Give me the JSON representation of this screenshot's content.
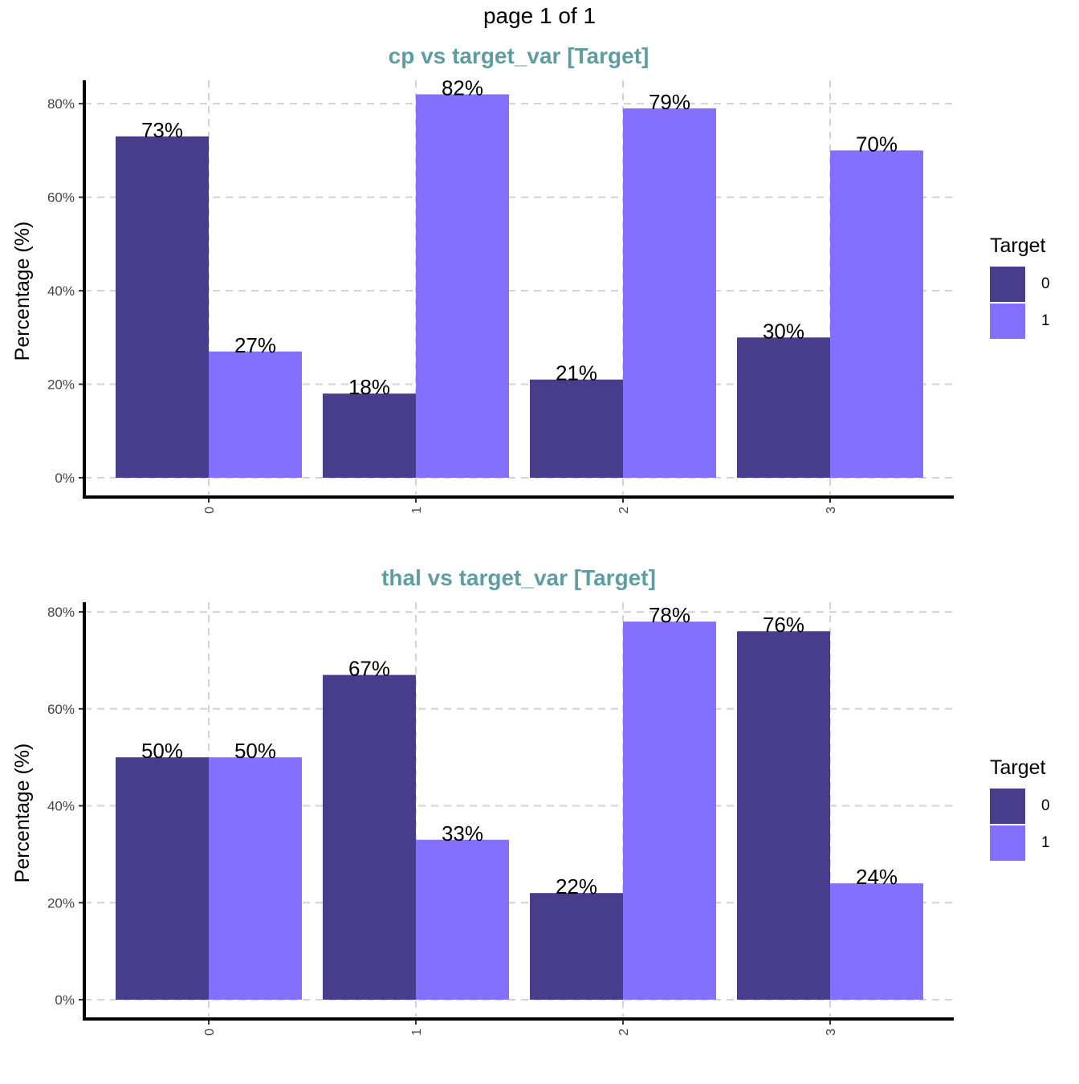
{
  "page_title": "page 1 of 1",
  "colors": {
    "target_0": "#483D8B",
    "target_1": "#8470FF",
    "title": "#5F9EA0",
    "grid": "#D3D3D3"
  },
  "chart_data": [
    {
      "type": "bar",
      "title": "cp vs target_var [Target]",
      "xlabel": "",
      "ylabel": "Percentage (%)",
      "categories": [
        "0",
        "1",
        "2",
        "3"
      ],
      "series": [
        {
          "name": "0",
          "values": [
            73,
            18,
            21,
            30
          ]
        },
        {
          "name": "1",
          "values": [
            27,
            82,
            79,
            70
          ]
        }
      ],
      "ylim": [
        0,
        85
      ],
      "yticks": [
        "0%",
        "20%",
        "40%",
        "60%",
        "80%"
      ],
      "legend": {
        "title": "Target",
        "position": "right"
      },
      "grid": true
    },
    {
      "type": "bar",
      "title": "thal vs target_var [Target]",
      "xlabel": "",
      "ylabel": "Percentage (%)",
      "categories": [
        "0",
        "1",
        "2",
        "3"
      ],
      "series": [
        {
          "name": "0",
          "values": [
            50,
            67,
            22,
            76
          ]
        },
        {
          "name": "1",
          "values": [
            50,
            33,
            78,
            24
          ]
        }
      ],
      "ylim": [
        0,
        82
      ],
      "yticks": [
        "0%",
        "20%",
        "40%",
        "60%",
        "80%"
      ],
      "legend": {
        "title": "Target",
        "position": "right"
      },
      "grid": true
    }
  ]
}
